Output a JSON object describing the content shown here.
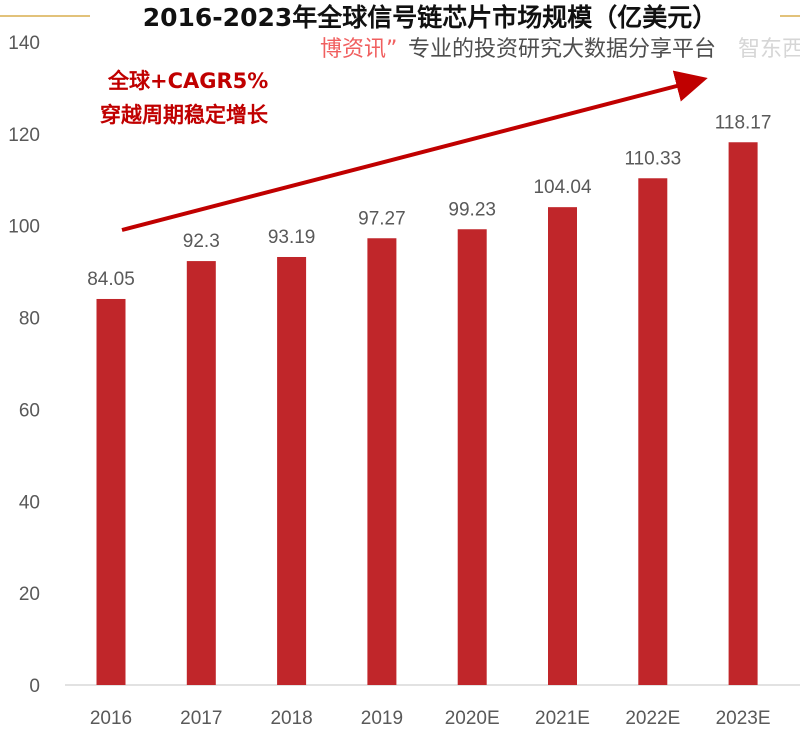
{
  "chart_data": {
    "type": "bar",
    "title": "2016-2023年全球信号链芯片市场规模（亿美元）",
    "categories": [
      "2016",
      "2017",
      "2018",
      "2019",
      "2020E",
      "2021E",
      "2022E",
      "2023E"
    ],
    "values": [
      84.05,
      92.3,
      93.19,
      97.27,
      99.23,
      104.04,
      110.33,
      118.17
    ],
    "data_labels": [
      "84.05",
      "92.3",
      "93.19",
      "97.27",
      "99.23",
      "104.04",
      "110.33",
      "118.17"
    ],
    "ylim": [
      0,
      140
    ],
    "yticks": [
      "0",
      "20",
      "40",
      "60",
      "80",
      "100",
      "120",
      "140"
    ],
    "grid": false,
    "xlabel": "",
    "ylabel": "",
    "bar_color": "#c0262a",
    "annotation": {
      "line1": "全球+CAGR5%",
      "line2": "穿越周期稳定增长",
      "color": "#c00000",
      "arrow": "trend-up"
    },
    "title_rule_color": "#e2c27a"
  },
  "watermarks": {
    "source_brand": "博资讯”",
    "source_slogan": "专业的投资研究大数据分享平台",
    "corner_logo": "智东西"
  }
}
